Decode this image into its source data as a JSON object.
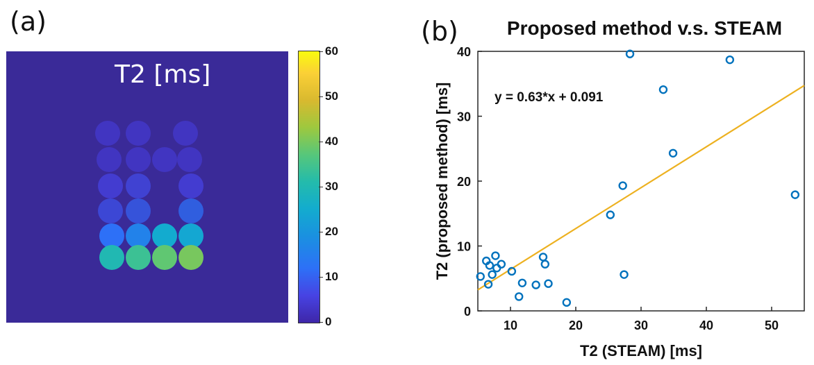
{
  "panels": {
    "a": {
      "label": "(a)",
      "map_title": "T2 [ms]",
      "colorbar": {
        "ticks": [
          "0",
          "10",
          "20",
          "30",
          "40",
          "50",
          "60"
        ],
        "min": 0,
        "max": 60
      },
      "phantom_rows": [
        {
          "row": 1,
          "t2_ms": [
            4,
            4,
            4
          ]
        },
        {
          "row": 2,
          "t2_ms": [
            4,
            4,
            4,
            4
          ]
        },
        {
          "row": 3,
          "t2_ms": [
            6,
            7,
            6
          ]
        },
        {
          "row": 4,
          "t2_ms": [
            8,
            10,
            12
          ]
        },
        {
          "row": 5,
          "t2_ms": [
            12,
            16,
            25,
            24
          ]
        },
        {
          "row": 6,
          "t2_ms": [
            30,
            34,
            38,
            40
          ]
        }
      ]
    },
    "b": {
      "label": "(b)"
    }
  },
  "chart_data": {
    "type": "scatter",
    "title": "Proposed method  v.s. STEAM",
    "xlabel": "T2 (STEAM) [ms]",
    "ylabel": "T2 (proposed method) [ms]",
    "xlim": [
      5,
      55
    ],
    "ylim": [
      0,
      40
    ],
    "xticks": [
      10,
      20,
      30,
      40,
      50
    ],
    "yticks": [
      0,
      10,
      20,
      30,
      40
    ],
    "points": [
      {
        "x": 5.4,
        "y": 5.3
      },
      {
        "x": 6.3,
        "y": 7.7
      },
      {
        "x": 6.6,
        "y": 4.1
      },
      {
        "x": 6.8,
        "y": 7.0
      },
      {
        "x": 7.2,
        "y": 5.6
      },
      {
        "x": 7.7,
        "y": 8.5
      },
      {
        "x": 7.9,
        "y": 6.6
      },
      {
        "x": 8.6,
        "y": 7.2
      },
      {
        "x": 10.2,
        "y": 6.1
      },
      {
        "x": 11.3,
        "y": 2.2
      },
      {
        "x": 11.8,
        "y": 4.3
      },
      {
        "x": 13.9,
        "y": 4.0
      },
      {
        "x": 15.0,
        "y": 8.3
      },
      {
        "x": 15.3,
        "y": 7.2
      },
      {
        "x": 15.8,
        "y": 4.2
      },
      {
        "x": 18.6,
        "y": 1.3
      },
      {
        "x": 25.3,
        "y": 14.8
      },
      {
        "x": 27.2,
        "y": 19.3
      },
      {
        "x": 27.4,
        "y": 5.6
      },
      {
        "x": 28.3,
        "y": 39.6
      },
      {
        "x": 33.4,
        "y": 34.1
      },
      {
        "x": 34.9,
        "y": 24.3
      },
      {
        "x": 43.6,
        "y": 38.7
      },
      {
        "x": 53.6,
        "y": 17.9
      }
    ],
    "fit": {
      "label": "y = 0.63*x + 0.091",
      "slope": 0.63,
      "intercept": 0.091,
      "x_range": [
        5,
        55
      ]
    },
    "colors": {
      "points": "#0072bd",
      "fit": "#edb120"
    }
  }
}
